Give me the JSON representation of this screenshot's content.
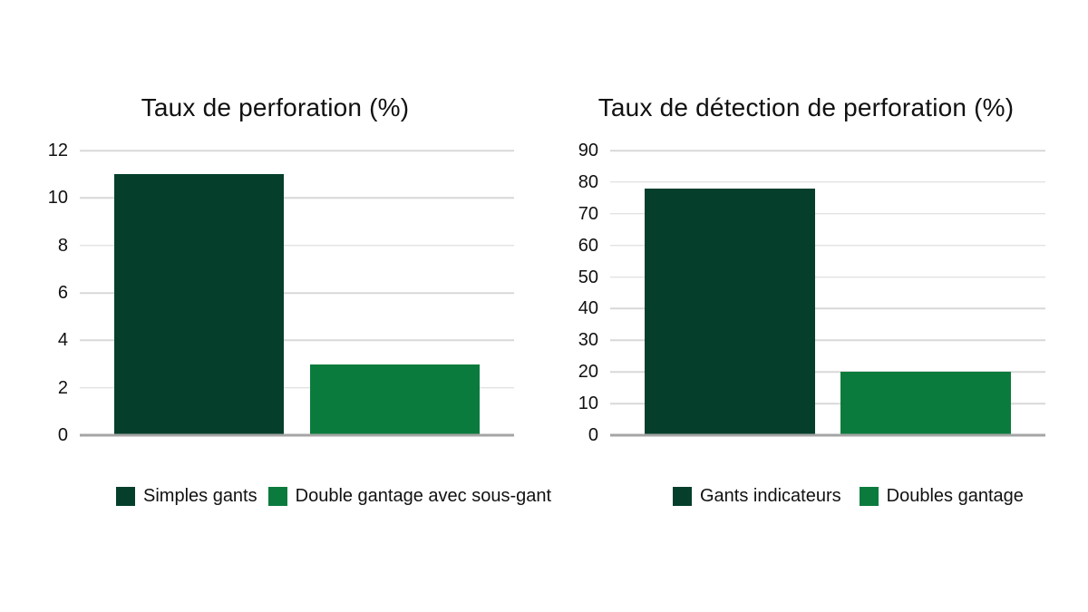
{
  "colors": {
    "dark_green": "#053f2c",
    "green": "#0a7b3c",
    "gridline": "#d8d8d8",
    "baseline": "#a5a5a5",
    "text": "#111111",
    "background": "#ffffff"
  },
  "chart_data": [
    {
      "type": "bar",
      "title": "Taux de perforation (%)",
      "categories": [
        "Simples gants",
        "Double gantage avec sous-gant"
      ],
      "values": [
        11,
        3
      ],
      "bar_colors": [
        "#053f2c",
        "#0a7b3c"
      ],
      "ylim": [
        0,
        12
      ],
      "yticks": [
        0,
        2,
        4,
        6,
        8,
        10,
        12
      ],
      "xlabel": "",
      "ylabel": "",
      "grid": true,
      "legend_position": "bottom"
    },
    {
      "type": "bar",
      "title": "Taux de détection de perforation (%)",
      "categories": [
        "Gants indicateurs",
        "Doubles gantage"
      ],
      "values": [
        78,
        20
      ],
      "bar_colors": [
        "#053f2c",
        "#0a7b3c"
      ],
      "ylim": [
        0,
        90
      ],
      "yticks": [
        0,
        10,
        20,
        30,
        40,
        50,
        60,
        70,
        80,
        90
      ],
      "xlabel": "",
      "ylabel": "",
      "grid": true,
      "legend_position": "bottom"
    }
  ]
}
